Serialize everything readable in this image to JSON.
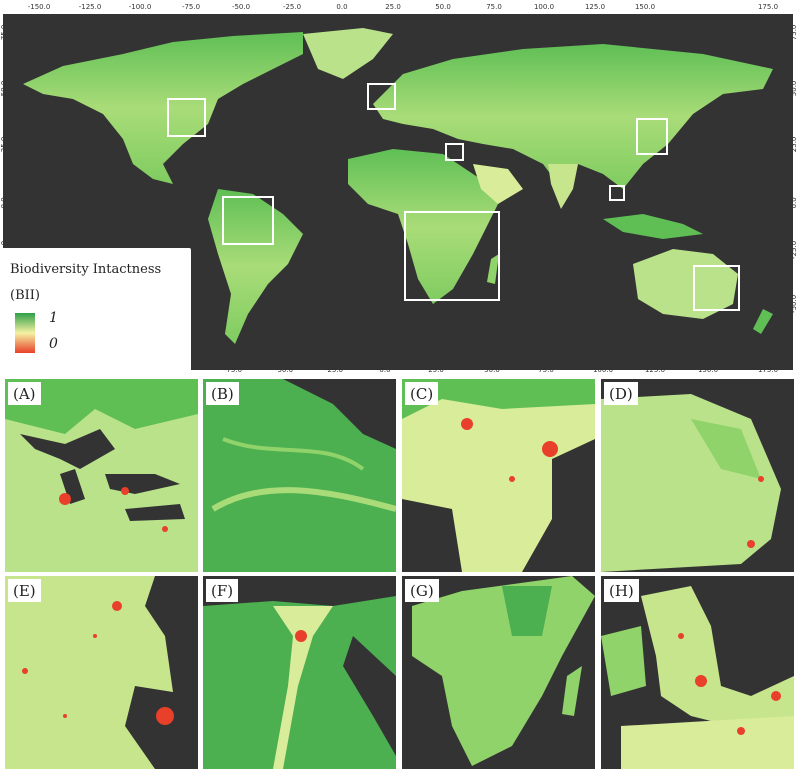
{
  "map": {
    "legend": {
      "title": "Biodiversity Intactness",
      "subtitle": "(BII)",
      "max_label": "1",
      "min_label": "0",
      "colors": {
        "high": "#2e9e4a",
        "mid": "#f6f2a2",
        "low": "#e8402a"
      }
    },
    "x_ticks_top": [
      "-150.0",
      "-125.0",
      "-100.0",
      "-75.0",
      "-50.0",
      "-25.0",
      "0.0",
      "25.0",
      "50.0",
      "75.0",
      "100.0",
      "125.0",
      "150.0",
      "175.0"
    ],
    "x_ticks_bottom": [
      "-75.0",
      "-50.0",
      "-25.0",
      "0.0",
      "25.0",
      "50.0",
      "75.0",
      "100.0",
      "125.0",
      "150.0",
      "175.0"
    ],
    "y_ticks_left": [
      "75.0",
      "50.0",
      "25.0",
      "0.0",
      "-25.0"
    ],
    "y_ticks_right": [
      "75.0",
      "50.0",
      "25.0",
      "0.0",
      "-25.0",
      "-50.0"
    ],
    "colors": {
      "ocean": "#333333",
      "land": "#8fd36a",
      "land_dark": "#4caf50",
      "land_light": "#d9ec9a",
      "frame": "#ffffff"
    }
  },
  "panels": [
    {
      "label": "(A)"
    },
    {
      "label": "(B)"
    },
    {
      "label": "(C)"
    },
    {
      "label": "(D)"
    },
    {
      "label": "(E)"
    },
    {
      "label": "(F)"
    },
    {
      "label": "(G)"
    },
    {
      "label": "(H)"
    }
  ]
}
